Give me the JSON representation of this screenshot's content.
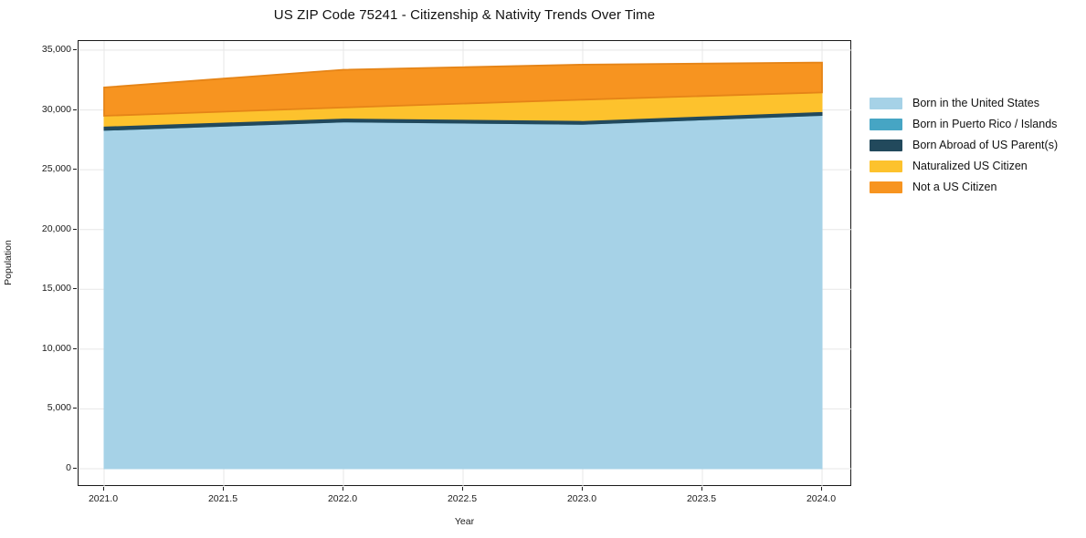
{
  "title": "US ZIP Code 75241 - Citizenship & Nativity Trends Over Time",
  "chart_data": {
    "type": "area",
    "stacked": true,
    "title": "US ZIP Code 75241 - Citizenship & Nativity Trends Over Time",
    "xlabel": "Year",
    "ylabel": "Population",
    "x": [
      2021,
      2022,
      2023,
      2024
    ],
    "series": [
      {
        "name": "Born in the United States",
        "color": "#a6d2e7",
        "values": [
          28300,
          29000,
          28800,
          29550
        ]
      },
      {
        "name": "Born in Puerto Rico / Islands",
        "color": "#46a5c4",
        "values": [
          0,
          0,
          0,
          0
        ]
      },
      {
        "name": "Born Abroad of US Parent(s)",
        "color": "#22495c",
        "values": [
          340,
          310,
          310,
          310
        ]
      },
      {
        "name": "Naturalized US Citizen",
        "color": "#fdc22d",
        "values": [
          870,
          890,
          1750,
          1600
        ]
      },
      {
        "name": "Not a US Citizen",
        "color": "#f79420",
        "values": [
          2370,
          3160,
          2930,
          2500
        ],
        "edge_color": "#e58417"
      }
    ],
    "totals": [
      31880,
      33360,
      33790,
      33960
    ],
    "xlim": [
      2020.893,
      2024.107
    ],
    "ylim": [
      0,
      35000
    ],
    "xtick_labels": [
      "2021.0",
      "2021.5",
      "2022.0",
      "2022.5",
      "2023.0",
      "2023.5",
      "2024.0"
    ],
    "ytick_labels": [
      "0",
      "5,000",
      "10,000",
      "15,000",
      "20,000",
      "25,000",
      "30,000",
      "35,000"
    ],
    "grid": true,
    "grid_color": "#e7e7e7",
    "spine_color": "#1a1a1a",
    "background_color": "#ffffff",
    "legend_position": "outside-right"
  }
}
